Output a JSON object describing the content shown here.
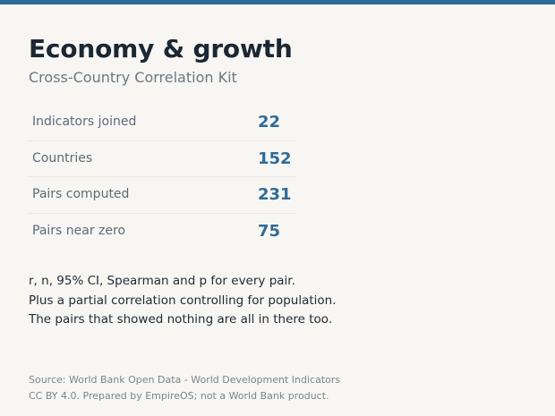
{
  "header": {
    "title": "Economy & growth",
    "subtitle": "Cross-Country Correlation Kit",
    "accent_color": "#2f6b98"
  },
  "stats": [
    {
      "label": "Indicators joined",
      "value": "22"
    },
    {
      "label": "Countries",
      "value": "152"
    },
    {
      "label": "Pairs computed",
      "value": "231"
    },
    {
      "label": "Pairs near zero",
      "value": "75"
    }
  ],
  "description": [
    "r, n, 95% CI, Spearman and p for every pair.",
    "Plus a partial correlation controlling for population.",
    "The pairs that showed nothing are all in there too."
  ],
  "footer": [
    "Source: World Bank Open Data - World Development Indicators",
    "CC BY 4.0. Prepared by EmpireOS; not a World Bank product."
  ]
}
